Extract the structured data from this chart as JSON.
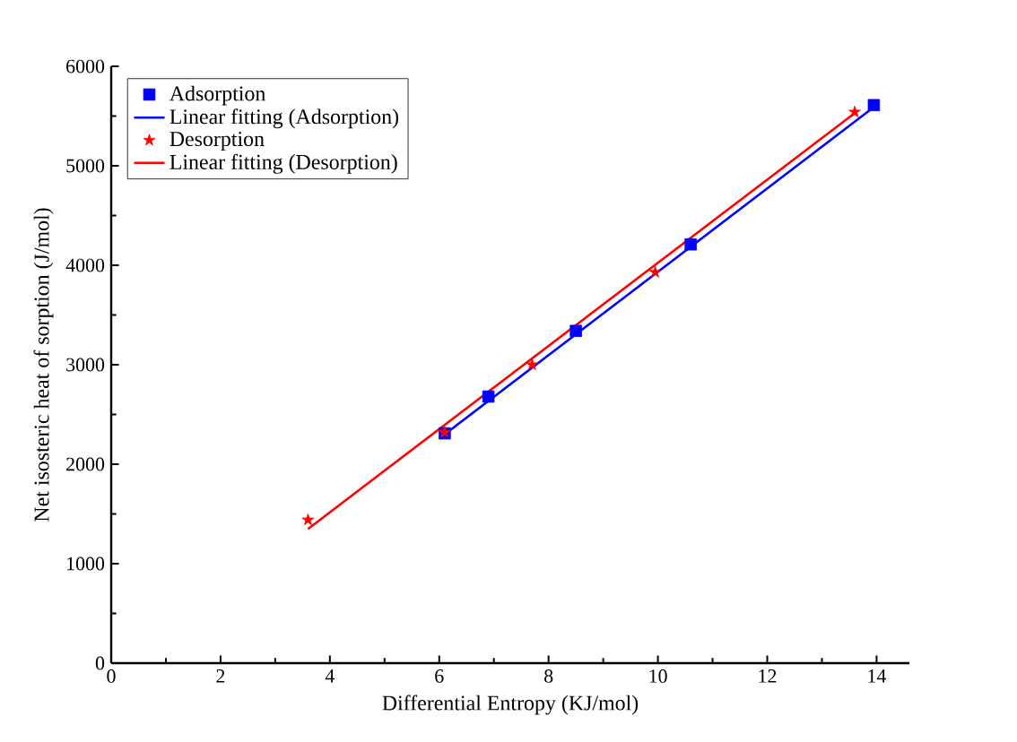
{
  "chart_data": {
    "type": "scatter",
    "xlabel": "Differential Entropy (KJ/mol)",
    "ylabel": "Net isosteric heat of sorption (J/mol)",
    "xlim": [
      0,
      14.6
    ],
    "ylim": [
      0,
      6000
    ],
    "xticks": [
      0,
      2,
      4,
      6,
      8,
      10,
      12,
      14
    ],
    "yticks": [
      0,
      1000,
      2000,
      3000,
      4000,
      5000,
      6000
    ],
    "legend": "top left",
    "grid": false,
    "series": [
      {
        "name": "Adsorption",
        "marker": "square",
        "color": "#0000ff",
        "x": [
          6.1,
          6.9,
          8.5,
          10.6,
          13.95
        ],
        "values": [
          2310,
          2680,
          3340,
          4210,
          5610
        ]
      },
      {
        "name": "Linear fitting (Adsorption)",
        "type": "line",
        "marker": "none",
        "color": "#0000ff",
        "x": [
          6.1,
          13.95
        ],
        "values": [
          2300,
          5590
        ]
      },
      {
        "name": "Desorption",
        "marker": "star",
        "color": "#ff0000",
        "x": [
          3.6,
          6.1,
          7.7,
          9.95,
          13.6
        ],
        "values": [
          1440,
          2320,
          3000,
          3930,
          5540
        ]
      },
      {
        "name": "Linear fitting (Desorption)",
        "type": "line",
        "marker": "none",
        "color": "#ff0000",
        "x": [
          3.6,
          13.6
        ],
        "values": [
          1350,
          5530
        ]
      }
    ]
  }
}
